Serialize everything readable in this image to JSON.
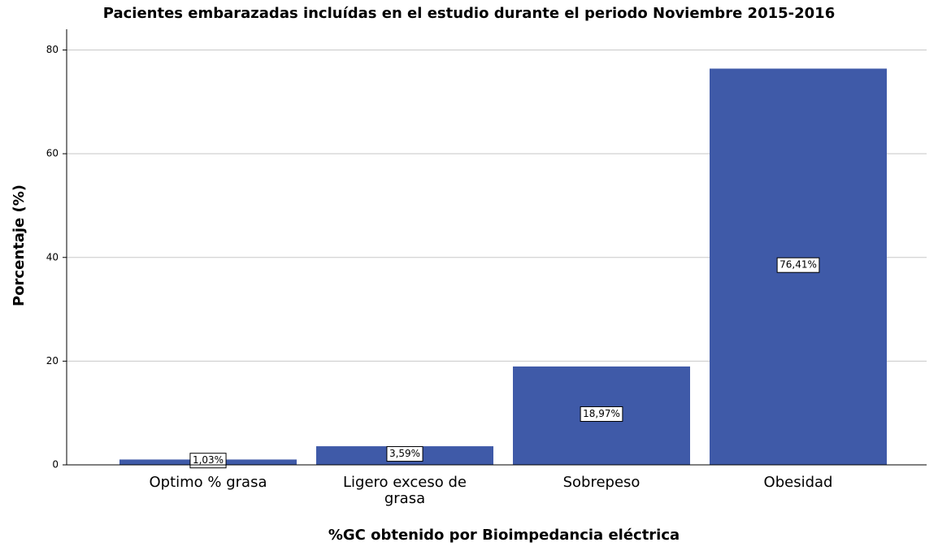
{
  "chart_data": {
    "type": "bar",
    "title": "Pacientes embarazadas incluídas en el estudio durante el periodo Noviembre 2015-2016",
    "x_label": "%GC obtenido por Bioimpedancia eléctrica",
    "y_label": "Porcentaje (%)",
    "categories": [
      "Optimo % grasa",
      "Ligero exceso de grasa",
      "Sobrepeso",
      "Obesidad"
    ],
    "values": [
      1.03,
      3.59,
      18.97,
      76.41
    ],
    "value_labels": [
      "1,03%",
      "3,59%",
      "18,97%",
      "76,41%"
    ],
    "color": "#3f5aa8",
    "ylim": [
      0,
      84
    ],
    "yticks": [
      0,
      20,
      40,
      60,
      80
    ],
    "grid": true
  }
}
